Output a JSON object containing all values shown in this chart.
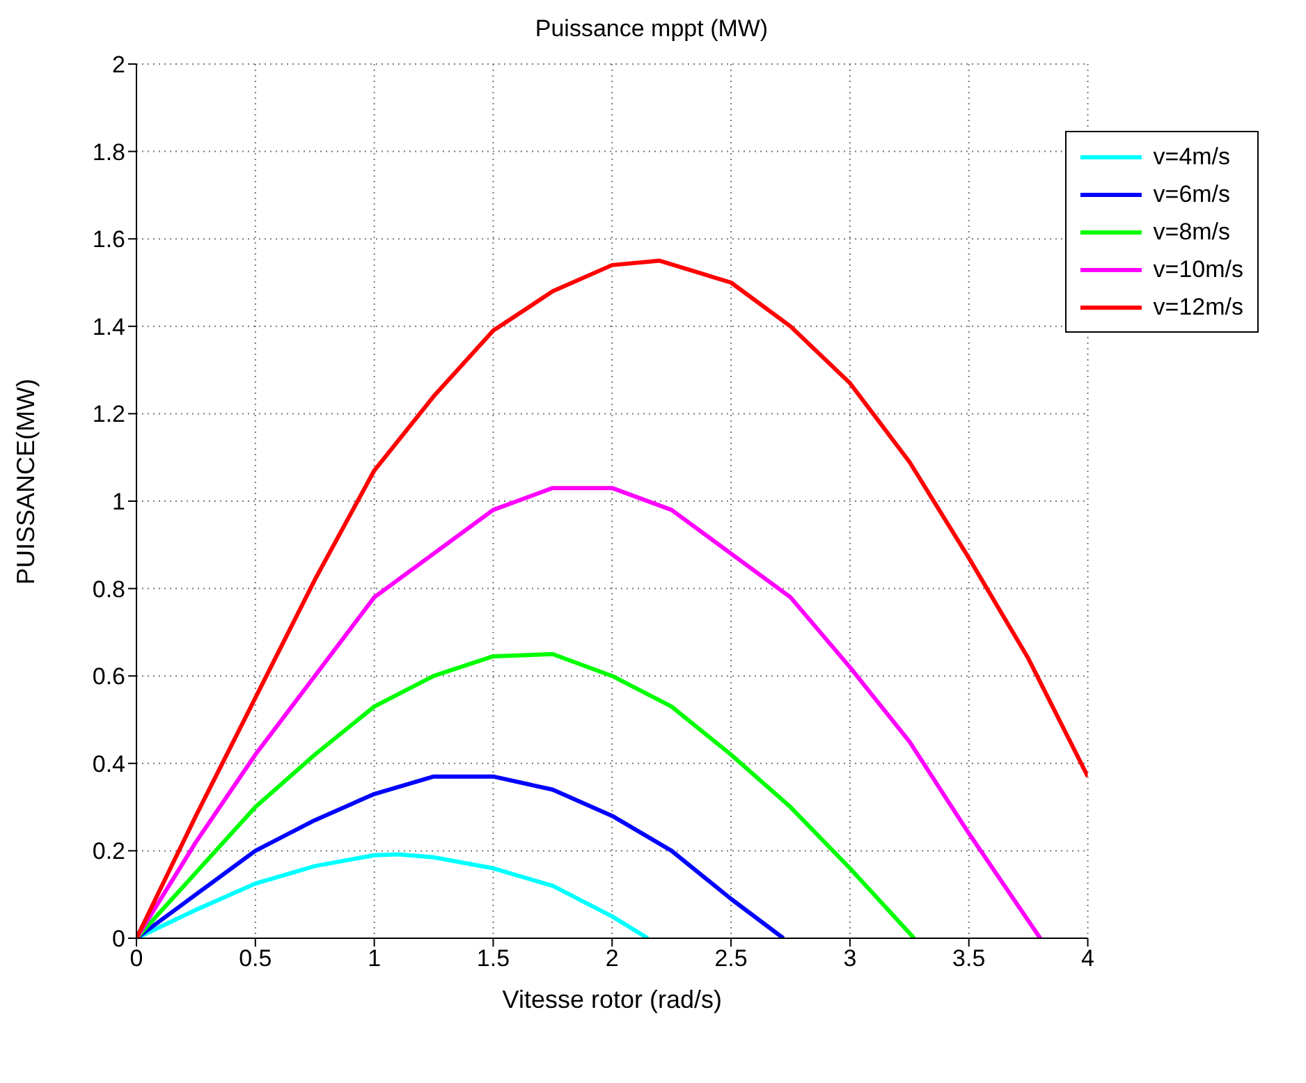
{
  "chart_data": {
    "type": "line",
    "title": "Puissance mppt (MW)",
    "xlabel": "Vitesse rotor (rad/s)",
    "ylabel": "PUISSANCE(MW)",
    "xlim": [
      0,
      4
    ],
    "xticks": [
      0,
      0.5,
      1,
      1.5,
      2,
      2.5,
      3,
      3.5,
      4
    ],
    "ylim": [
      0,
      2
    ],
    "yticks": [
      0,
      0.2,
      0.4,
      0.6,
      0.8,
      1,
      1.2,
      1.4,
      1.6,
      1.8,
      2
    ],
    "grid": true,
    "legend": "top right",
    "marker": "none",
    "line_style": "solid",
    "series": [
      {
        "name": "v=4m/s",
        "color": "#00ffff",
        "x": [
          0,
          0.25,
          0.5,
          0.75,
          1,
          1.1,
          1.25,
          1.5,
          1.75,
          2,
          2.15
        ],
        "values": [
          0,
          0.065,
          0.125,
          0.165,
          0.19,
          0.192,
          0.185,
          0.16,
          0.12,
          0.05,
          0
        ]
      },
      {
        "name": "v=6m/s",
        "color": "#0000ff",
        "x": [
          0,
          0.25,
          0.5,
          0.75,
          1,
          1.25,
          1.5,
          1.75,
          2,
          2.25,
          2.5,
          2.72
        ],
        "values": [
          0,
          0.1,
          0.2,
          0.27,
          0.33,
          0.37,
          0.37,
          0.34,
          0.28,
          0.2,
          0.09,
          0
        ]
      },
      {
        "name": "v=8m/s",
        "color": "#00ff00",
        "x": [
          0,
          0.25,
          0.5,
          0.75,
          1,
          1.25,
          1.5,
          1.75,
          2,
          2.25,
          2.5,
          2.75,
          3,
          3.27
        ],
        "values": [
          0,
          0.15,
          0.3,
          0.42,
          0.53,
          0.6,
          0.645,
          0.65,
          0.6,
          0.53,
          0.42,
          0.3,
          0.16,
          0
        ]
      },
      {
        "name": "v=10m/s",
        "color": "#ff00ff",
        "x": [
          0,
          0.25,
          0.5,
          0.75,
          1,
          1.25,
          1.5,
          1.75,
          2,
          2.25,
          2.5,
          2.75,
          3,
          3.25,
          3.5,
          3.8
        ],
        "values": [
          0,
          0.22,
          0.42,
          0.6,
          0.78,
          0.88,
          0.98,
          1.03,
          1.03,
          0.98,
          0.88,
          0.78,
          0.62,
          0.45,
          0.24,
          0
        ]
      },
      {
        "name": "v=12m/s",
        "color": "#ff0000",
        "x": [
          0,
          0.25,
          0.5,
          0.75,
          1,
          1.25,
          1.5,
          1.75,
          2,
          2.2,
          2.5,
          2.75,
          3,
          3.25,
          3.5,
          3.75,
          4
        ],
        "values": [
          0,
          0.28,
          0.55,
          0.82,
          1.07,
          1.24,
          1.39,
          1.48,
          1.54,
          1.55,
          1.5,
          1.4,
          1.27,
          1.09,
          0.87,
          0.64,
          0.37
        ]
      }
    ]
  }
}
